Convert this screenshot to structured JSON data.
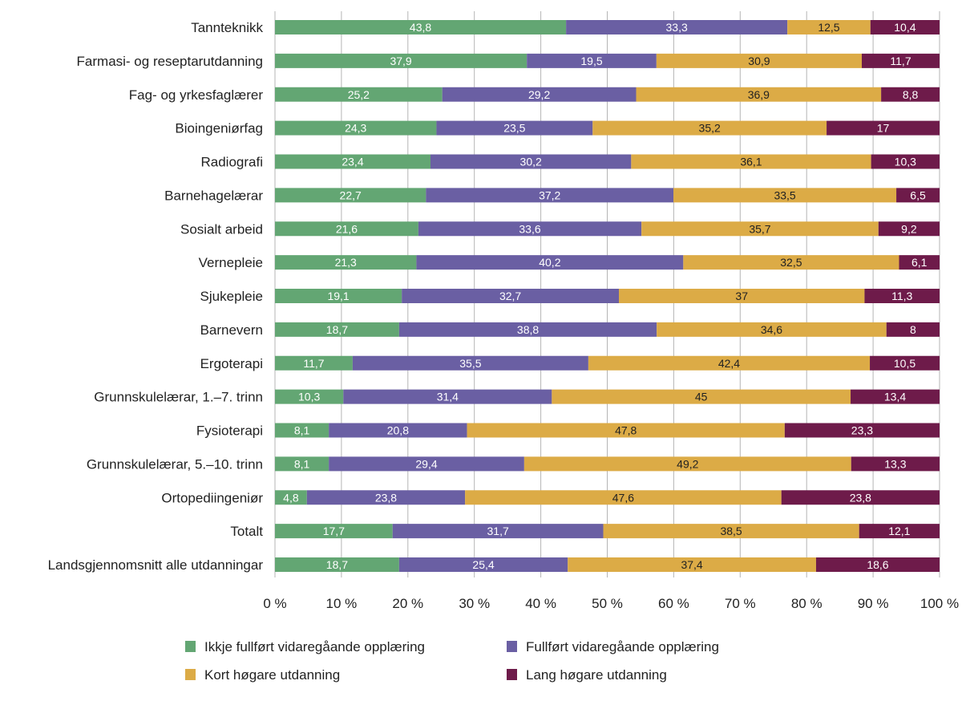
{
  "chart_data": {
    "type": "bar",
    "orientation": "horizontal",
    "stacked": true,
    "categories": [
      "Tannteknikk",
      "Farmasi- og reseptarutdanning",
      "Fag- og yrkesfaglærer",
      "Bioingeniørfag",
      "Radiografi",
      "Barnehagelærar",
      "Sosialt arbeid",
      "Vernepleie",
      "Sjukepleie",
      "Barnevern",
      "Ergoterapi",
      "Grunnskulelærar, 1.–7. trinn",
      "Fysioterapi",
      "Grunnskulelærar, 5.–10. trinn",
      "Ortopediingeniør",
      "Totalt",
      "Landsgjennomsnitt alle utdanningar"
    ],
    "series": [
      {
        "name": "Ikkje fullført vidaregåande opplæring",
        "color": "#63a673",
        "label_color": "#ffffff",
        "values": [
          43.8,
          37.9,
          25.2,
          24.3,
          23.4,
          22.7,
          21.6,
          21.3,
          19.1,
          18.7,
          11.7,
          10.3,
          8.1,
          8.1,
          4.8,
          17.7,
          18.7
        ]
      },
      {
        "name": "Fullført vidaregåande opplæring",
        "color": "#6a5fa3",
        "label_color": "#ffffff",
        "values": [
          33.3,
          19.5,
          29.2,
          23.5,
          30.2,
          37.2,
          33.6,
          40.2,
          32.7,
          38.8,
          35.5,
          31.4,
          20.8,
          29.4,
          23.8,
          31.7,
          25.4
        ]
      },
      {
        "name": "Kort høgare utdanning",
        "color": "#dcab46",
        "label_color": "#222222",
        "values": [
          12.5,
          30.9,
          36.9,
          35.2,
          36.1,
          33.5,
          35.7,
          32.5,
          37,
          34.6,
          42.4,
          45,
          47.8,
          49.2,
          47.6,
          38.5,
          37.4
        ]
      },
      {
        "name": "Lang høgare utdanning",
        "color": "#6e1b4a",
        "label_color": "#ffffff",
        "values": [
          10.4,
          11.7,
          8.8,
          17,
          10.3,
          6.5,
          9.2,
          6.1,
          11.3,
          8,
          10.5,
          13.4,
          23.3,
          13.3,
          23.8,
          12.1,
          18.6
        ]
      }
    ],
    "xlim": [
      0,
      100
    ],
    "x_ticks": [
      "0 %",
      "10 %",
      "20 %",
      "30 %",
      "40 %",
      "50 %",
      "60 %",
      "70 %",
      "80 %",
      "90 %",
      "100 %"
    ],
    "grid": "vertical",
    "legend_position": "bottom",
    "decimal_separator": ","
  }
}
